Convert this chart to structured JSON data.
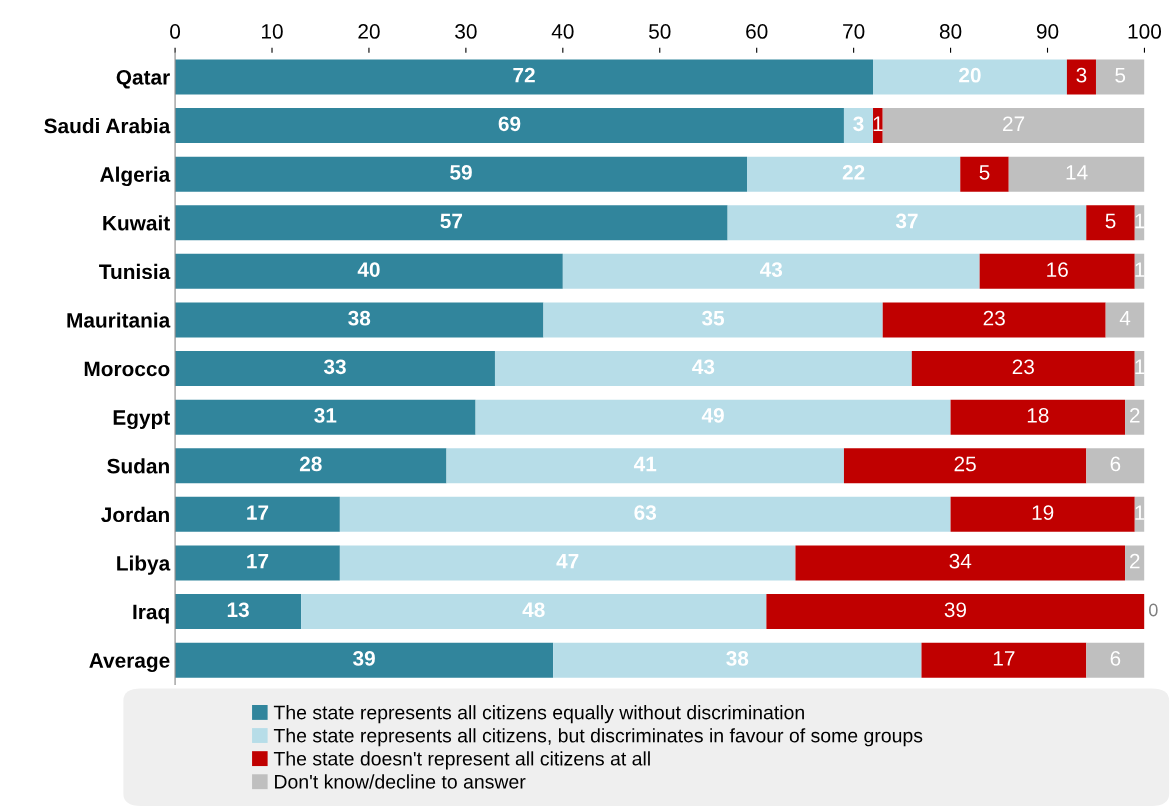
{
  "chart_data": {
    "type": "bar",
    "orientation": "horizontal",
    "stacked": true,
    "data_labels": true,
    "legend": "bottom",
    "grid": false,
    "categories": [
      "Qatar",
      "Saudi Arabia",
      "Algeria",
      "Kuwait",
      "Tunisia",
      "Mauritania",
      "Morocco",
      "Egypt",
      "Sudan",
      "Jordan",
      "Libya",
      "Iraq",
      "Average"
    ],
    "xlim": [
      0,
      100
    ],
    "xticks": [
      0,
      10,
      20,
      30,
      40,
      50,
      60,
      70,
      80,
      90,
      100
    ],
    "series": [
      {
        "name": "The state represents all citizens equally without discrimination",
        "color": "#31859c",
        "values": [
          72,
          69,
          59,
          57,
          40,
          38,
          33,
          31,
          28,
          17,
          17,
          13,
          39
        ]
      },
      {
        "name": "The state represents all citizens, but discriminates in favour of some groups",
        "color": "#b7dde8",
        "values": [
          20,
          3,
          22,
          37,
          43,
          35,
          43,
          49,
          41,
          63,
          47,
          48,
          38
        ]
      },
      {
        "name": "The state doesn't represent all citizens at all",
        "color": "#c00000",
        "values": [
          3,
          1,
          5,
          5,
          16,
          23,
          23,
          18,
          25,
          19,
          34,
          39,
          17
        ]
      },
      {
        "name": "Don't know/decline to answer",
        "color": "#bfbfbf",
        "values": [
          5,
          27,
          14,
          1,
          1,
          4,
          1,
          2,
          6,
          1,
          2,
          0,
          6
        ]
      }
    ]
  }
}
